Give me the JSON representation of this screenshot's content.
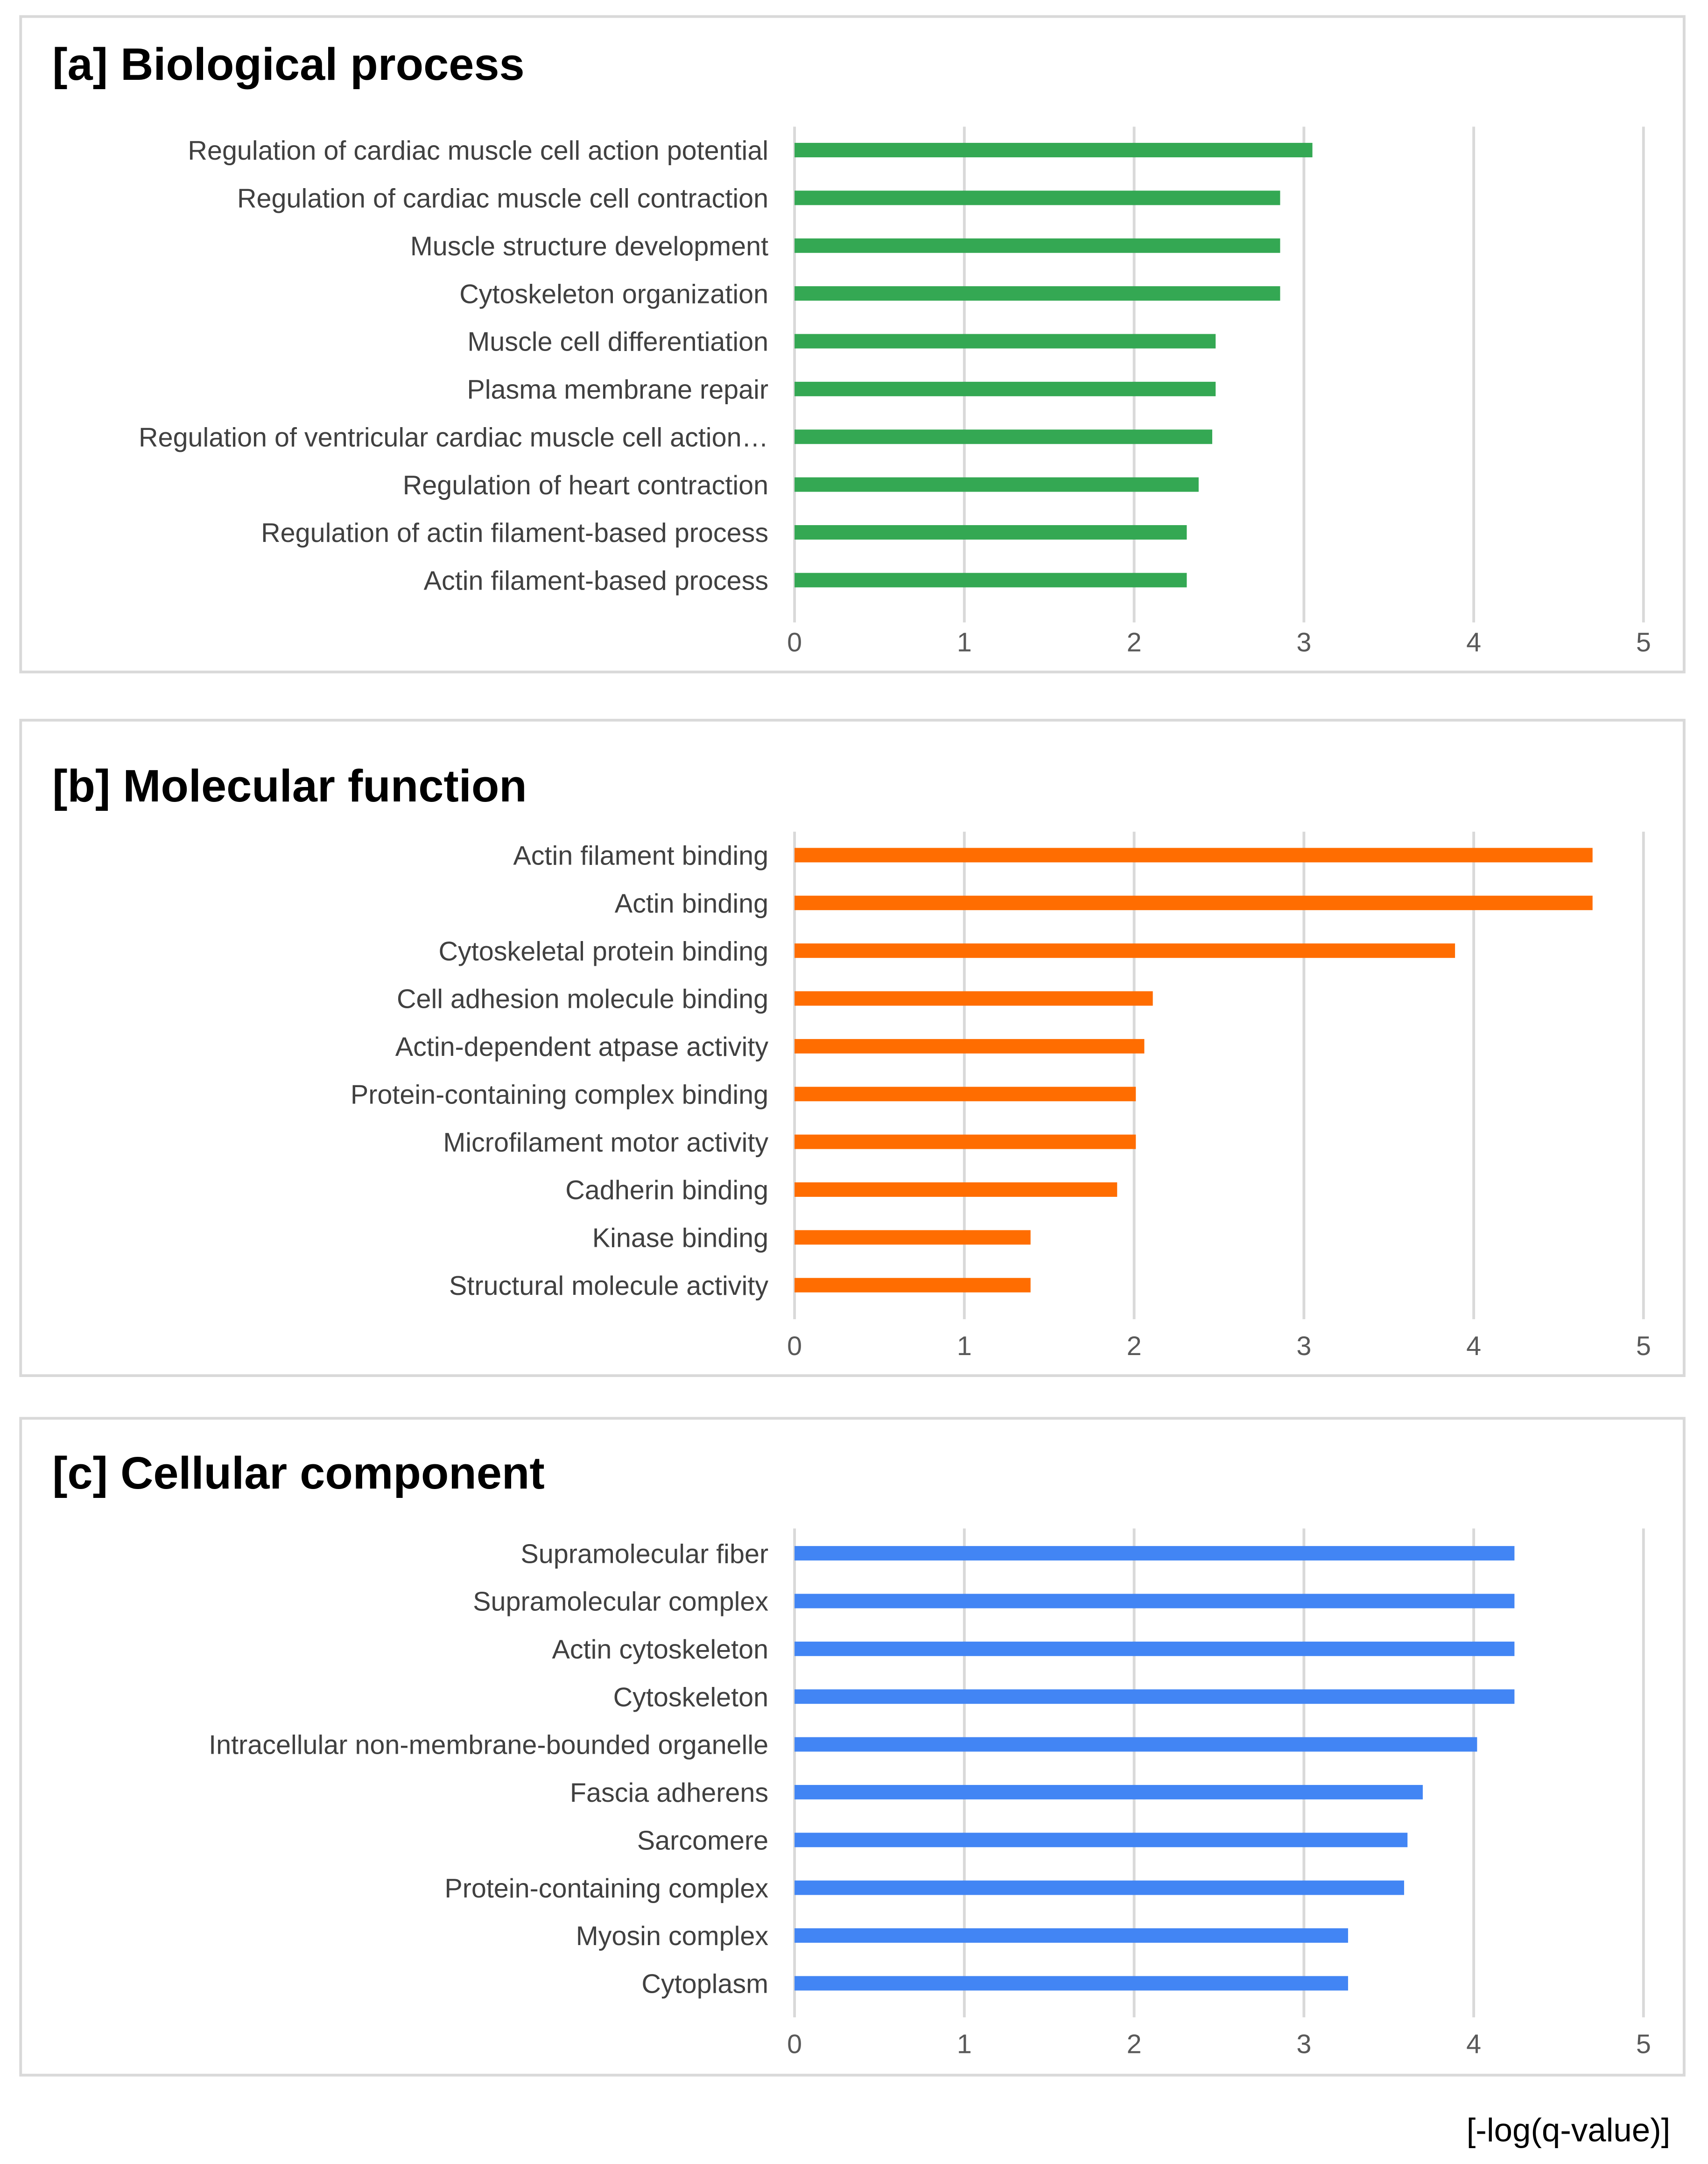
{
  "chart_data": [
    {
      "type": "bar",
      "orientation": "horizontal",
      "title": "[a] Biological process",
      "color": "#34A853",
      "xlim": [
        0,
        5
      ],
      "xticks": [
        0,
        1,
        2,
        3,
        4,
        5
      ],
      "grid": true,
      "categories": [
        "Regulation of cardiac muscle cell action potential",
        "Regulation of cardiac muscle cell contraction",
        "Muscle structure development",
        "Cytoskeleton organization",
        "Muscle cell differentiation",
        "Plasma membrane repair",
        "Regulation of ventricular cardiac muscle cell action…",
        "Regulation of heart contraction",
        "Regulation of actin filament-based process",
        "Actin filament-based process"
      ],
      "values": [
        3.05,
        2.86,
        2.86,
        2.86,
        2.48,
        2.48,
        2.46,
        2.38,
        2.31,
        2.31
      ]
    },
    {
      "type": "bar",
      "orientation": "horizontal",
      "title": "[b] Molecular function",
      "color": "#FF6D01",
      "xlim": [
        0,
        5
      ],
      "xticks": [
        0,
        1,
        2,
        3,
        4,
        5
      ],
      "grid": true,
      "categories": [
        "Actin filament binding",
        "Actin binding",
        "Cytoskeletal protein binding",
        "Cell adhesion molecule binding",
        "Actin-dependent atpase activity",
        "Protein-containing complex binding",
        "Microfilament motor activity",
        "Cadherin binding",
        "Kinase binding",
        "Structural molecule activity"
      ],
      "values": [
        4.7,
        4.7,
        3.89,
        2.11,
        2.06,
        2.01,
        2.01,
        1.9,
        1.39,
        1.39
      ]
    },
    {
      "type": "bar",
      "orientation": "horizontal",
      "title": "[c] Cellular component",
      "color": "#4285F4",
      "xlim": [
        0,
        5
      ],
      "xticks": [
        0,
        1,
        2,
        3,
        4,
        5
      ],
      "grid": true,
      "categories": [
        "Supramolecular fiber",
        "Supramolecular complex",
        "Actin cytoskeleton",
        "Cytoskeleton",
        "Intracellular non-membrane-bounded organelle",
        "Fascia adherens",
        "Sarcomere",
        "Protein-containing complex",
        "Myosin complex",
        "Cytoplasm"
      ],
      "values": [
        4.24,
        4.24,
        4.24,
        4.24,
        4.02,
        3.7,
        3.61,
        3.59,
        3.26,
        3.26
      ]
    }
  ],
  "footer": {
    "axis_label": "[-log(q-value)]"
  }
}
